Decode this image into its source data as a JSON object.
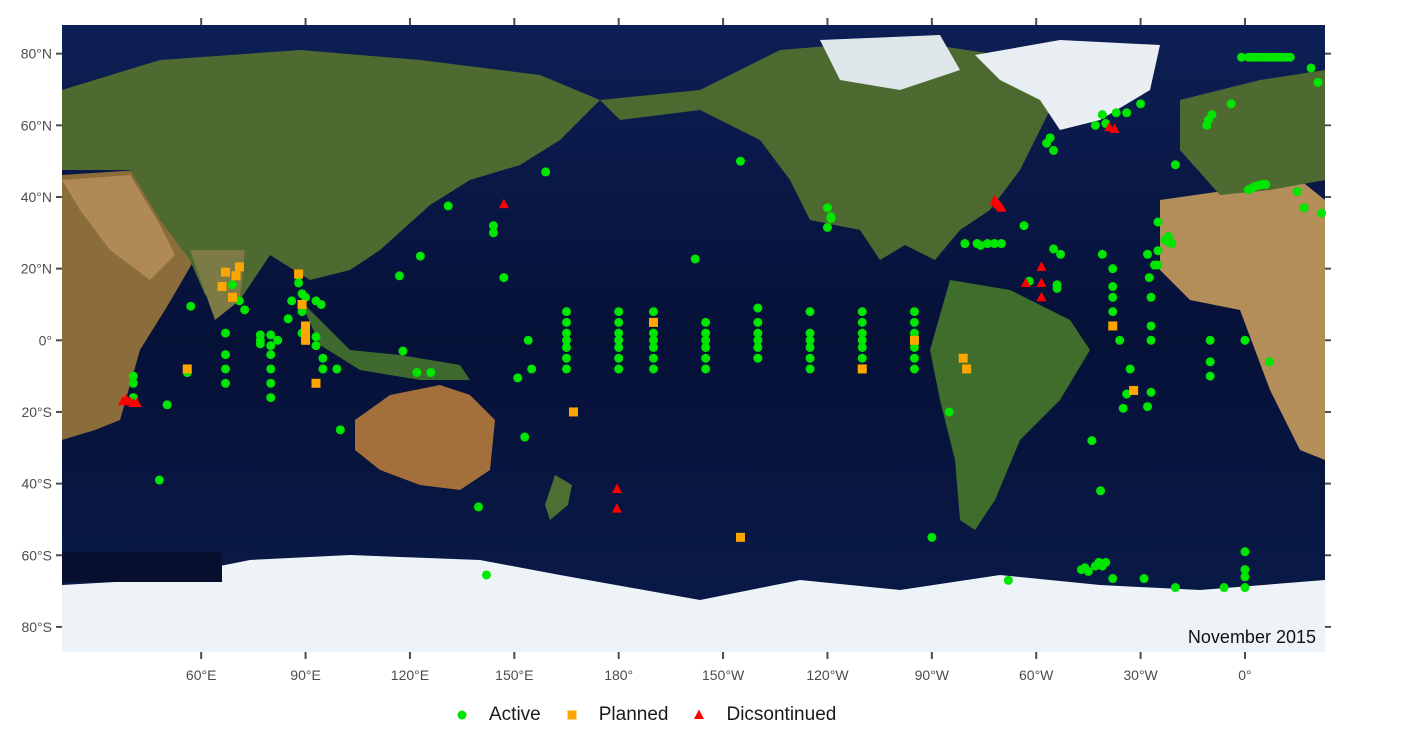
{
  "map": {
    "caption": "November 2015",
    "lat_ticks": [
      "80°N",
      "60°N",
      "40°N",
      "20°N",
      "0°",
      "20°S",
      "40°S",
      "60°S",
      "80°S"
    ],
    "lon_ticks": [
      "60°E",
      "90°E",
      "120°E",
      "150°E",
      "180°",
      "150°W",
      "120°W",
      "90°W",
      "60°W",
      "30°W",
      "0°"
    ],
    "colors": {
      "active": "#00e600",
      "planned": "#ffa500",
      "discontinued": "#ff0000",
      "ocean": "#08123a",
      "land": "#4e6b32",
      "ice": "#eef3f7"
    }
  },
  "legend": {
    "items": [
      {
        "key": "active",
        "label": "Active",
        "shape": "circle"
      },
      {
        "key": "planned",
        "label": "Planned",
        "shape": "square"
      },
      {
        "key": "discontinued",
        "label": "Dicsontinued",
        "shape": "triangle"
      }
    ]
  },
  "stations": {
    "active": [
      [
        40.5,
        -16
      ],
      [
        40.5,
        -12
      ],
      [
        40.5,
        -10
      ],
      [
        57,
        9.5
      ],
      [
        48,
        -39
      ],
      [
        50.2,
        -18
      ],
      [
        56,
        -9
      ],
      [
        67,
        2
      ],
      [
        67,
        -4
      ],
      [
        67,
        -8
      ],
      [
        67,
        -12
      ],
      [
        69,
        15.5
      ],
      [
        71,
        11
      ],
      [
        72.5,
        8.5
      ],
      [
        77,
        1.5
      ],
      [
        77,
        0
      ],
      [
        77,
        -1
      ],
      [
        80,
        1.5
      ],
      [
        80,
        -1.5
      ],
      [
        80,
        -4
      ],
      [
        80,
        -8
      ],
      [
        80,
        -12
      ],
      [
        80,
        -16
      ],
      [
        82,
        0
      ],
      [
        85,
        6
      ],
      [
        86,
        11
      ],
      [
        88,
        18
      ],
      [
        88,
        16
      ],
      [
        89,
        13
      ],
      [
        89,
        8
      ],
      [
        90,
        12
      ],
      [
        89,
        2
      ],
      [
        93,
        1
      ],
      [
        93,
        -1.5
      ],
      [
        93,
        11
      ],
      [
        94.5,
        10
      ],
      [
        95,
        -5
      ],
      [
        95,
        -8
      ],
      [
        99,
        -8
      ],
      [
        100,
        -25
      ],
      [
        117,
        18
      ],
      [
        118,
        -3
      ],
      [
        122,
        -9
      ],
      [
        123,
        23.5
      ],
      [
        126,
        -9
      ],
      [
        131,
        37.5
      ],
      [
        139.7,
        -46.5
      ],
      [
        142,
        -65.5
      ],
      [
        144,
        32
      ],
      [
        144,
        30
      ],
      [
        147,
        17.5
      ],
      [
        151,
        -10.5
      ],
      [
        153,
        -27
      ],
      [
        154,
        0
      ],
      [
        155,
        -8
      ],
      [
        159,
        47
      ],
      [
        165,
        8
      ],
      [
        165,
        5
      ],
      [
        165,
        2
      ],
      [
        165,
        0
      ],
      [
        165,
        -2
      ],
      [
        165,
        -5
      ],
      [
        165,
        -8
      ],
      [
        180,
        8
      ],
      [
        180,
        5
      ],
      [
        180,
        2
      ],
      [
        180,
        0
      ],
      [
        180,
        -2
      ],
      [
        180,
        -5
      ],
      [
        180,
        -8
      ],
      [
        190,
        8
      ],
      [
        190,
        2
      ],
      [
        190,
        0
      ],
      [
        190,
        -2
      ],
      [
        190,
        -5
      ],
      [
        190,
        -8
      ],
      [
        205,
        5
      ],
      [
        205,
        2
      ],
      [
        205,
        0
      ],
      [
        205,
        -2
      ],
      [
        205,
        -5
      ],
      [
        205,
        -8
      ],
      [
        202,
        22.7
      ],
      [
        215,
        50
      ],
      [
        220,
        9
      ],
      [
        220,
        5
      ],
      [
        220,
        2
      ],
      [
        220,
        0
      ],
      [
        220,
        -2
      ],
      [
        220,
        -5
      ],
      [
        235,
        8
      ],
      [
        235,
        2
      ],
      [
        235,
        0
      ],
      [
        235,
        -2
      ],
      [
        235,
        -5
      ],
      [
        235,
        -8
      ],
      [
        240,
        37
      ],
      [
        241,
        34
      ],
      [
        240,
        31.5
      ],
      [
        241,
        34.5
      ],
      [
        250,
        8
      ],
      [
        250,
        5
      ],
      [
        250,
        2
      ],
      [
        250,
        0
      ],
      [
        250,
        -2
      ],
      [
        250,
        -5
      ],
      [
        250,
        -8
      ],
      [
        265,
        8
      ],
      [
        265,
        5
      ],
      [
        265,
        2
      ],
      [
        265,
        0
      ],
      [
        265,
        -2
      ],
      [
        265,
        -5
      ],
      [
        265,
        -8
      ],
      [
        270,
        -55
      ],
      [
        275,
        -20
      ],
      [
        279.5,
        27
      ],
      [
        283,
        27
      ],
      [
        284,
        26.5
      ],
      [
        286,
        27
      ],
      [
        288,
        27
      ],
      [
        290,
        27
      ],
      [
        292,
        -67
      ],
      [
        296.5,
        32
      ],
      [
        298,
        16.5
      ],
      [
        303,
        55
      ],
      [
        304,
        56.5
      ],
      [
        305,
        53
      ],
      [
        305,
        25.5
      ],
      [
        306,
        15.5
      ],
      [
        306,
        14.5
      ],
      [
        307,
        24
      ],
      [
        313,
        -64
      ],
      [
        314,
        -63.5
      ],
      [
        315,
        -64.5
      ],
      [
        317,
        -63
      ],
      [
        316,
        -28
      ],
      [
        317,
        60
      ],
      [
        318,
        -62
      ],
      [
        319,
        -63
      ],
      [
        318.5,
        -42
      ],
      [
        319,
        63
      ],
      [
        319,
        24
      ],
      [
        320,
        -62
      ],
      [
        320,
        60.5
      ],
      [
        322,
        20
      ],
      [
        322,
        15
      ],
      [
        322,
        12
      ],
      [
        322,
        8
      ],
      [
        322,
        -66.5
      ],
      [
        323,
        63.5
      ],
      [
        324,
        0
      ],
      [
        325,
        -19
      ],
      [
        326,
        -15
      ],
      [
        327,
        -8
      ],
      [
        326,
        63.5
      ],
      [
        330,
        66
      ],
      [
        331,
        -66.5
      ],
      [
        332,
        -18.5
      ],
      [
        332,
        24
      ],
      [
        332.5,
        17.5
      ],
      [
        333,
        -14.5
      ],
      [
        333,
        12
      ],
      [
        333,
        4
      ],
      [
        333,
        0
      ],
      [
        334,
        21
      ],
      [
        335,
        33
      ],
      [
        335,
        25
      ],
      [
        335,
        21
      ],
      [
        337,
        28
      ],
      [
        338,
        29
      ],
      [
        338,
        27.5
      ],
      [
        339,
        27
      ],
      [
        340,
        -69
      ],
      [
        340,
        49
      ],
      [
        349,
        60
      ],
      [
        349.5,
        61.5
      ],
      [
        350.5,
        63
      ],
      [
        350,
        0
      ],
      [
        350,
        -6
      ],
      [
        350,
        -10
      ],
      [
        354,
        -69
      ],
      [
        356,
        66
      ],
      [
        360,
        -59
      ],
      [
        360,
        -64
      ],
      [
        360,
        -66
      ],
      [
        360,
        -69
      ],
      [
        360,
        0
      ],
      [
        359,
        79
      ],
      [
        361,
        79
      ],
      [
        362,
        79
      ],
      [
        363,
        79
      ],
      [
        364,
        79
      ],
      [
        365,
        79
      ],
      [
        366,
        79
      ],
      [
        367,
        79
      ],
      [
        368,
        79
      ],
      [
        369,
        79
      ],
      [
        370,
        79
      ],
      [
        371,
        79
      ],
      [
        372,
        79
      ],
      [
        373,
        79
      ],
      [
        361,
        42
      ],
      [
        362,
        42.5
      ],
      [
        363,
        43
      ],
      [
        364,
        43.3
      ],
      [
        365,
        43.5
      ],
      [
        366,
        43.5
      ],
      [
        367,
        -6
      ],
      [
        375,
        41.5
      ],
      [
        377,
        37
      ],
      [
        379,
        76
      ],
      [
        381,
        72
      ],
      [
        382,
        35.5
      ]
    ],
    "planned": [
      [
        56,
        -8
      ],
      [
        66,
        15
      ],
      [
        67,
        19
      ],
      [
        69,
        12
      ],
      [
        70,
        18
      ],
      [
        71,
        20.5
      ],
      [
        88,
        18.5
      ],
      [
        89,
        10
      ],
      [
        90,
        4
      ],
      [
        90,
        2
      ],
      [
        90,
        0
      ],
      [
        93,
        -12
      ],
      [
        167,
        -20
      ],
      [
        190,
        5
      ],
      [
        215,
        -55
      ],
      [
        250,
        -8
      ],
      [
        265,
        0
      ],
      [
        279,
        -5
      ],
      [
        280,
        -8
      ],
      [
        322,
        4
      ],
      [
        328,
        -14
      ]
    ],
    "discontinued": [
      [
        37.5,
        -17
      ],
      [
        38.5,
        -16.5
      ],
      [
        39.5,
        -17
      ],
      [
        40.5,
        -17.5
      ],
      [
        41.5,
        -17.5
      ],
      [
        147,
        38
      ],
      [
        179.5,
        -41.5
      ],
      [
        179.5,
        -47
      ],
      [
        288,
        39
      ],
      [
        288.5,
        38.5
      ],
      [
        289,
        38
      ],
      [
        289.5,
        37.5
      ],
      [
        290,
        37
      ],
      [
        297,
        16
      ],
      [
        301.5,
        20.5
      ],
      [
        301.5,
        16
      ],
      [
        301.5,
        12
      ],
      [
        321,
        59.5
      ],
      [
        322.5,
        59
      ]
    ]
  }
}
